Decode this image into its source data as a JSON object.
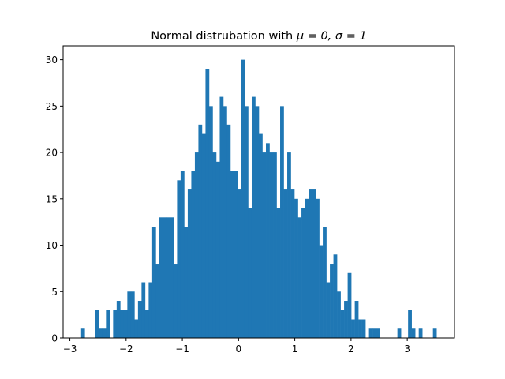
{
  "figure": {
    "title_prefix": "Normal distrubation with ",
    "title_math": "μ = 0, σ = 1",
    "bar_color": "#1f77b4",
    "axes_color": "#000000",
    "background": "#ffffff"
  },
  "chart_data": {
    "type": "bar",
    "subtype": "histogram",
    "title": "Normal distrubation with $\\mu=0, \\sigma=1$",
    "xlabel": "",
    "ylabel": "",
    "bins": 100,
    "bin_range": [
      -2.8,
      3.52
    ],
    "bin_width": 0.0632,
    "values": [
      1,
      0,
      0,
      0,
      3,
      1,
      1,
      3,
      0,
      3,
      4,
      3,
      3,
      5,
      5,
      2,
      4,
      6,
      3,
      6,
      12,
      8,
      13,
      13,
      13,
      13,
      8,
      17,
      18,
      12,
      16,
      18,
      20,
      23,
      22,
      29,
      25,
      20,
      19,
      26,
      25,
      23,
      18,
      18,
      16,
      30,
      25,
      14,
      26,
      25,
      22,
      20,
      21,
      20,
      20,
      14,
      25,
      16,
      20,
      16,
      15,
      13,
      14,
      15,
      16,
      16,
      15,
      10,
      12,
      6,
      8,
      9,
      5,
      3,
      4,
      7,
      2,
      4,
      2,
      2,
      0,
      1,
      1,
      1,
      0,
      0,
      0,
      0,
      0,
      1,
      0,
      0,
      3,
      1,
      0,
      1,
      0,
      0,
      0,
      1
    ],
    "total_count": 1000,
    "xlim": [
      -3.12,
      3.84
    ],
    "ylim": [
      0,
      31.5
    ],
    "xticks": [
      -3,
      -2,
      -1,
      0,
      1,
      2,
      3
    ],
    "xtick_labels": [
      "−3",
      "−2",
      "−1",
      "0",
      "1",
      "2",
      "3"
    ],
    "yticks": [
      0,
      5,
      10,
      15,
      20,
      25,
      30
    ],
    "ytick_labels": [
      "0",
      "5",
      "10",
      "15",
      "20",
      "25",
      "30"
    ],
    "grid": false,
    "legend": null
  }
}
